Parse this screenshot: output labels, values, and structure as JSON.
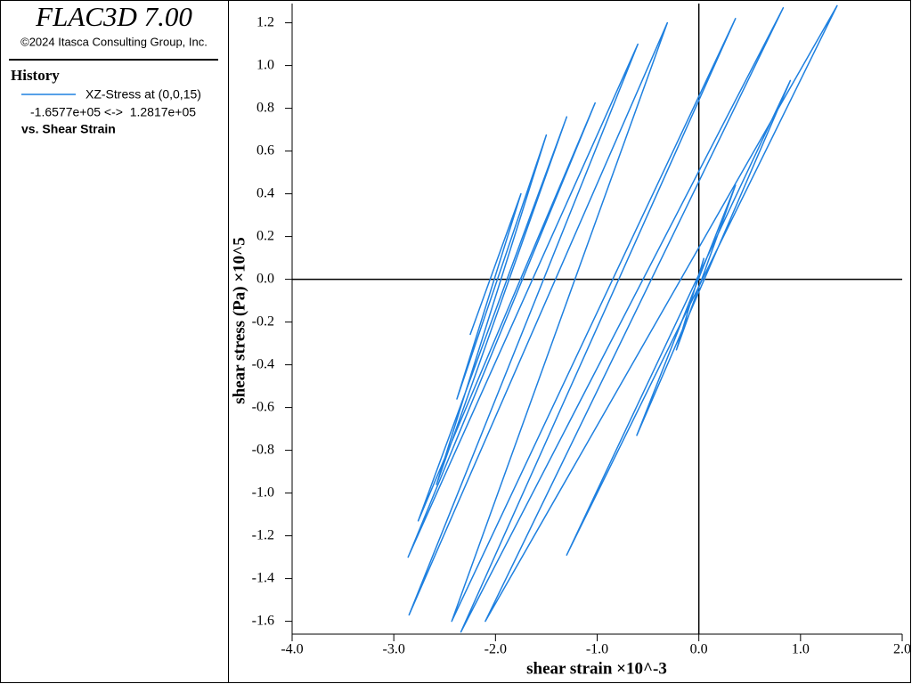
{
  "chart_data": {
    "type": "line",
    "title": "FLAC3D 7.00",
    "subtitle": "©2024 Itasca Consulting Group, Inc.",
    "legend_heading": "History",
    "legend_footer": "vs. Shear Strain",
    "x_label": "shear strain ×10^-3",
    "y_label": "shear stress (Pa) ×10^5",
    "x": [
      -2.25,
      -1.75,
      -2.38,
      -1.5,
      -2.58,
      -1.3,
      -2.76,
      -1.02,
      -2.86,
      -0.6,
      -2.85,
      -0.31,
      -2.43,
      0.36,
      -2.34,
      0.83,
      -2.1,
      1.36,
      -1.3,
      0.9,
      -0.61,
      0.36,
      -0.22,
      0.05
    ],
    "series": [
      {
        "name": "XZ-Stress at (0,0,15)",
        "range_label": "-1.6577e+05 <->  1.2817e+05",
        "color": "#1e80e0",
        "values": [
          -0.26,
          0.4,
          -0.56,
          0.675,
          -0.96,
          0.76,
          -1.13,
          0.825,
          -1.3,
          1.1,
          -1.57,
          1.2,
          -1.6,
          1.22,
          -1.65,
          1.27,
          -1.6,
          1.28,
          -1.29,
          0.93,
          -0.73,
          0.44,
          -0.33,
          0.1
        ]
      }
    ],
    "xlim": [
      -4,
      2
    ],
    "ylim": [
      -1.66,
      1.29
    ],
    "xticks": [
      {
        "value": -4,
        "label": "-4.0"
      },
      {
        "value": -3,
        "label": "-3.0"
      },
      {
        "value": -2,
        "label": "-2.0"
      },
      {
        "value": -1,
        "label": "-1.0"
      },
      {
        "value": 0,
        "label": "0.0"
      },
      {
        "value": 1,
        "label": "1.0"
      },
      {
        "value": 2,
        "label": "2.0"
      }
    ],
    "yticks": [
      -1.6,
      -1.4,
      -1.2,
      {
        "value": -1,
        "label": "-1.0"
      },
      -0.8,
      -0.6,
      -0.4,
      -0.2,
      {
        "value": 0,
        "label": "0.0"
      },
      0.2,
      0.4,
      0.6,
      0.8,
      {
        "value": 1,
        "label": "1.0"
      },
      1.2
    ]
  }
}
